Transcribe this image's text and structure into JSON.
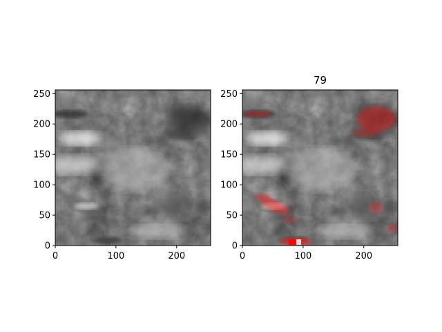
{
  "chart_data": [
    {
      "type": "heatmap",
      "title": "",
      "xlabel": "",
      "ylabel": "",
      "xlim": [
        0,
        256
      ],
      "ylim": [
        0,
        256
      ],
      "xticks": [
        0,
        100,
        200
      ],
      "yticks": [
        0,
        50,
        100,
        150,
        200,
        250
      ],
      "colormap": "gray",
      "overlay": false
    },
    {
      "type": "heatmap",
      "title": "79",
      "xlabel": "",
      "ylabel": "",
      "xlim": [
        0,
        256
      ],
      "ylim": [
        0,
        256
      ],
      "xticks": [
        0,
        100,
        200
      ],
      "yticks": [
        0,
        50,
        100,
        150,
        200,
        250
      ],
      "colormap": "gray",
      "overlay": true,
      "overlay_color": "#ff0000"
    }
  ]
}
